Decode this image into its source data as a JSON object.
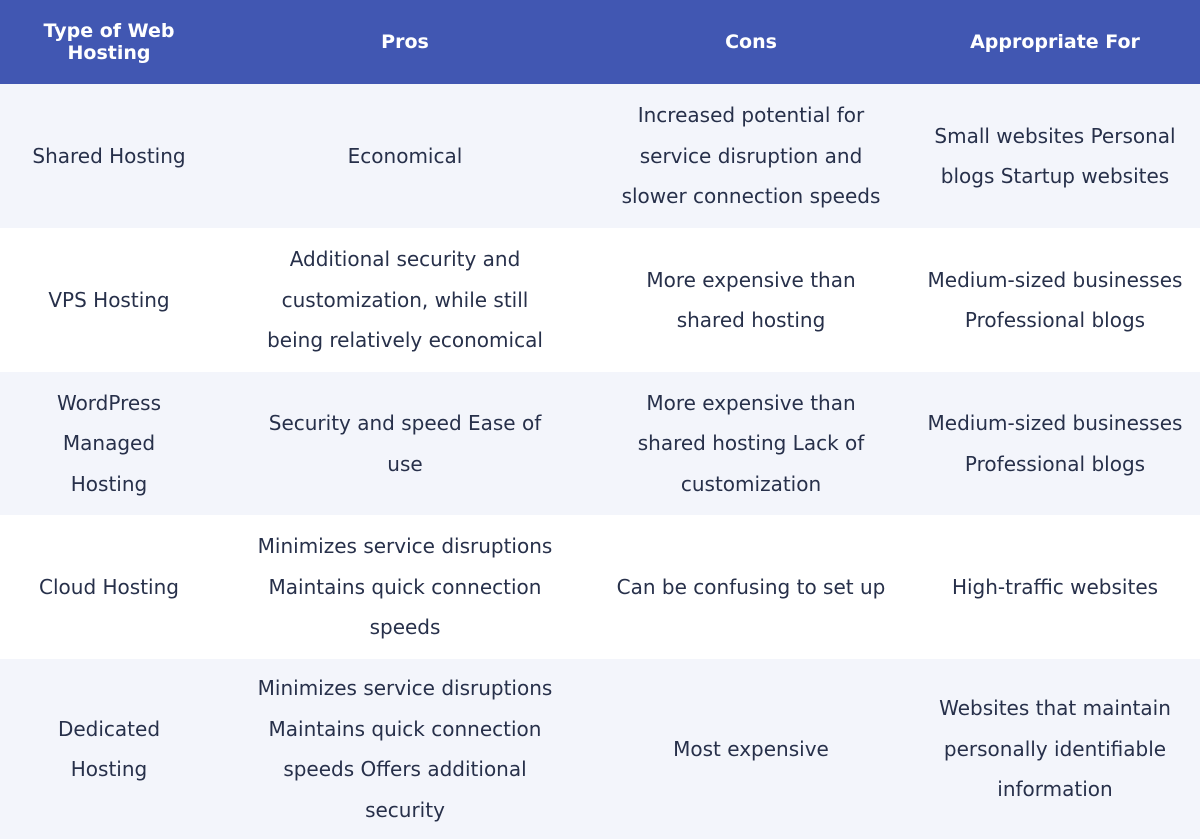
{
  "header": {
    "type": "Type of Web Hosting",
    "pros": "Pros",
    "cons": "Cons",
    "appropriate": "Appropriate For"
  },
  "rows": [
    {
      "type": "Shared Hosting",
      "pros": "Economical",
      "cons": "Increased potential for service disruption and slower connection speeds",
      "appropriate": "Small websites Personal blogs Startup websites"
    },
    {
      "type": "VPS Hosting",
      "pros": "Additional security and customization, while still being relatively economical",
      "cons": "More expensive than shared hosting",
      "appropriate": "Medium-sized businesses Professional blogs"
    },
    {
      "type": "WordPress Managed Hosting",
      "pros": "Security and speed Ease of use",
      "cons": "More expensive than shared hosting Lack of customization",
      "appropriate": "Medium-sized businesses Professional blogs"
    },
    {
      "type": "Cloud Hosting",
      "pros": "Minimizes service disruptions Maintains quick connection speeds",
      "cons": "Can be confusing to set up",
      "appropriate": "High-traffic websites"
    },
    {
      "type": "Dedicated Hosting",
      "pros": "Minimizes service disruptions Maintains quick connection speeds Offers additional security",
      "cons": "Most expensive",
      "appropriate": "Websites that maintain personally identifiable information"
    }
  ],
  "colors": {
    "header_bg": "#4157b2",
    "row_shade": "#f3f5fb",
    "row_plain": "#ffffff",
    "text": "#27304a"
  }
}
